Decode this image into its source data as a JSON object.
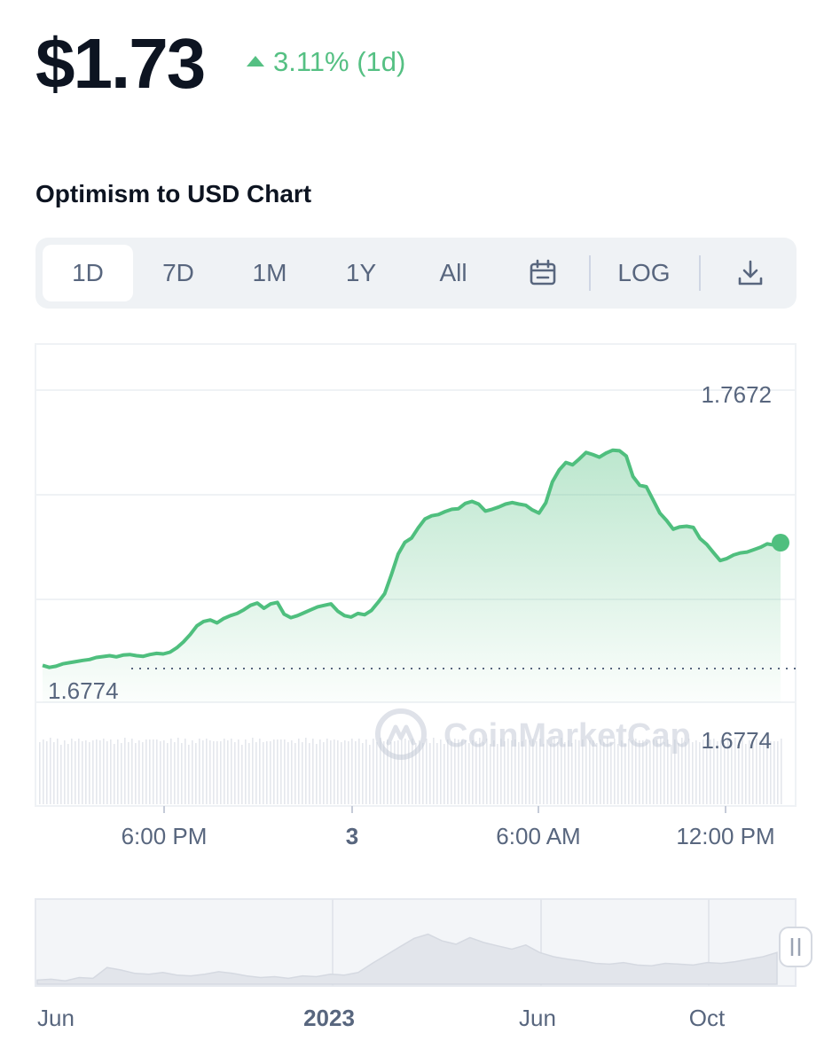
{
  "header": {
    "price": "$1.73",
    "change": "3.11% (1d)",
    "change_color": "#55c083"
  },
  "chart_title": "Optimism to USD Chart",
  "toolbar": {
    "items": [
      "1D",
      "7D",
      "1M",
      "1Y",
      "All"
    ],
    "active": "1D",
    "log_label": "LOG",
    "icons": [
      "calendar-icon",
      "download-icon"
    ]
  },
  "watermark": "CoinMarketCap",
  "chart_data": {
    "type": "area",
    "x_ticks": [
      "6:00 PM",
      "3",
      "6:00 AM",
      "12:00 PM"
    ],
    "price_labels": {
      "high": "1.7672",
      "open": "1.6774",
      "current_ref": "1.6774"
    },
    "y_range": [
      1.6659,
      1.7725
    ],
    "baseline": 1.6774,
    "series": [
      {
        "values": [
          1.6785,
          1.6778,
          1.6782,
          1.679,
          1.6794,
          1.6798,
          1.6802,
          1.6805,
          1.6812,
          1.6815,
          1.6818,
          1.6814,
          1.682,
          1.6822,
          1.6818,
          1.6816,
          1.6822,
          1.6826,
          1.6824,
          1.683,
          1.6845,
          1.6865,
          1.689,
          1.692,
          1.6935,
          1.694,
          1.693,
          1.6945,
          1.6955,
          1.6962,
          1.6975,
          1.699,
          1.6998,
          1.698,
          1.6995,
          1.7,
          1.696,
          1.6948,
          1.6955,
          1.6965,
          1.6975,
          1.6985,
          1.699,
          1.6995,
          1.697,
          1.6955,
          1.695,
          1.6962,
          1.6958,
          1.6972,
          1.7,
          1.703,
          1.7095,
          1.7165,
          1.7205,
          1.722,
          1.7255,
          1.7285,
          1.7296,
          1.73,
          1.731,
          1.7318,
          1.732,
          1.7338,
          1.7345,
          1.7336,
          1.7312,
          1.7318,
          1.7326,
          1.7336,
          1.7341,
          1.7336,
          1.7332,
          1.7316,
          1.7305,
          1.734,
          1.7412,
          1.7452,
          1.7478,
          1.747,
          1.749,
          1.7512,
          1.7505,
          1.7496,
          1.751,
          1.752,
          1.7518,
          1.75,
          1.743,
          1.74,
          1.7395,
          1.735,
          1.7305,
          1.728,
          1.725,
          1.7258,
          1.726,
          1.7256,
          1.7218,
          1.7198,
          1.717,
          1.7143,
          1.715,
          1.7162,
          1.7169,
          1.7172,
          1.718,
          1.7188,
          1.72,
          1.7196,
          1.7204
        ]
      }
    ],
    "line_color": "#4fbf7e",
    "grid": true
  },
  "navigator": {
    "labels": [
      "Jun",
      "2023",
      "Jun",
      "Oct"
    ],
    "handle_icon": "pause-handle-icon",
    "values": [
      0.05,
      0.06,
      0.04,
      0.08,
      0.07,
      0.2,
      0.17,
      0.13,
      0.12,
      0.14,
      0.11,
      0.1,
      0.12,
      0.15,
      0.13,
      0.1,
      0.08,
      0.09,
      0.07,
      0.1,
      0.09,
      0.12,
      0.11,
      0.14,
      0.25,
      0.35,
      0.45,
      0.55,
      0.6,
      0.52,
      0.48,
      0.56,
      0.5,
      0.46,
      0.42,
      0.47,
      0.38,
      0.33,
      0.3,
      0.28,
      0.25,
      0.24,
      0.26,
      0.23,
      0.22,
      0.25,
      0.24,
      0.23,
      0.26,
      0.25,
      0.27,
      0.3,
      0.33,
      0.38
    ]
  }
}
